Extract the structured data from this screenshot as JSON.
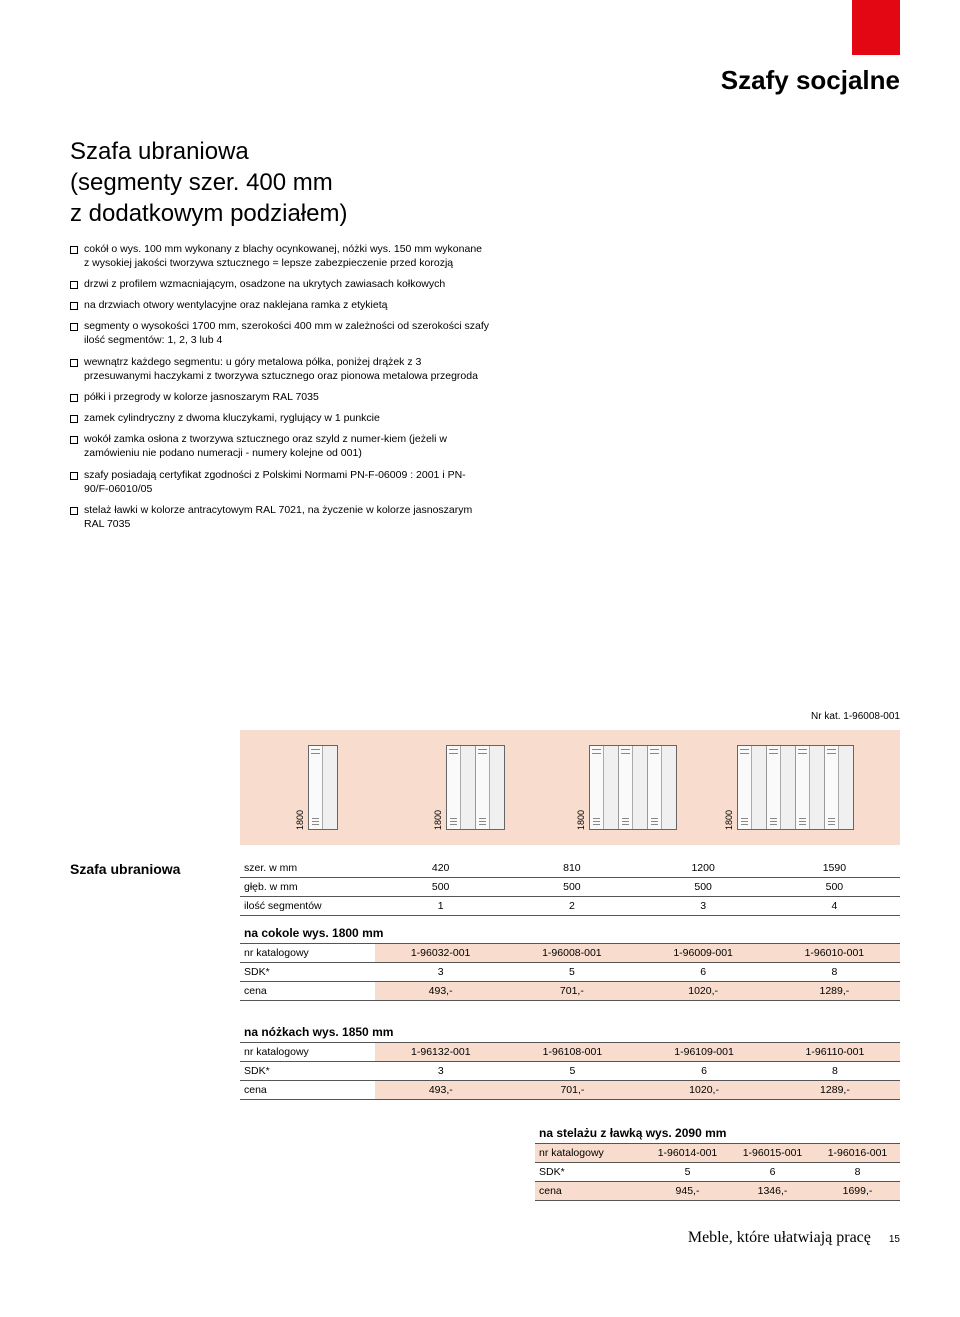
{
  "page_title": "Szafy socjalne",
  "product_title_l1": "Szafa ubraniowa",
  "product_title_l2": "(segmenty szer. 400 mm",
  "product_title_l3": "z dodatkowym podziałem)",
  "bullets": [
    "cokół o wys. 100 mm wykonany z blachy ocynkowanej, nóżki wys. 150 mm wykonane z wysokiej jakości tworzywa sztucznego = lepsze zabezpieczenie przed korozją",
    "drzwi z profilem wzmacniającym, osadzone na ukrytych zawiasach kołkowych",
    "na drzwiach otwory wentylacyjne oraz naklejana ramka z etykietą",
    "segmenty o wysokości 1700 mm, szerokości 400 mm w zależności od szerokości szafy ilość segmentów: 1, 2, 3 lub 4",
    "wewnątrz każdego segmentu: u góry metalowa półka, poniżej drążek z 3 przesuwanymi haczykami z tworzywa sztucznego oraz pionowa metalowa przegroda",
    "półki i przegrody w kolorze jasnoszarym RAL 7035",
    "zamek cylindryczny z dwoma kluczykami, ryglujący w 1 punkcie",
    "wokół zamka osłona z tworzywa sztucznego oraz szyld z numer-kiem (jeżeli w zamówieniu nie podano numeracji - numery kolejne od 001)",
    "szafy posiadają certyfikat zgodności z Polskimi Normami PN-F-06009 : 2001 i PN-90/F-06010/05",
    "stelaż ławki w kolorze antracytowym RAL 7021, na życzenie w kolorze jasnoszarym  RAL 7035"
  ],
  "nr_kat_label": "Nr kat. 1-96008-001",
  "height_label": "1800",
  "table_row_label": "Szafa ubraniowa",
  "rows_labels": {
    "szer": "szer. w mm",
    "gleb": "głęb. w mm",
    "ilosc": "ilość segmentów",
    "nr": "nr katalogowy",
    "sdk": "SDK*",
    "cena": "cena"
  },
  "section1": {
    "head": "na cokole wys. 1800 mm",
    "szer": [
      "420",
      "810",
      "1200",
      "1590"
    ],
    "gleb": [
      "500",
      "500",
      "500",
      "500"
    ],
    "ilosc": [
      "1",
      "2",
      "3",
      "4"
    ],
    "nr": [
      "1-96032-001",
      "1-96008-001",
      "1-96009-001",
      "1-96010-001"
    ],
    "sdk": [
      "3",
      "5",
      "6",
      "8"
    ],
    "cena": [
      "493,-",
      "701,-",
      "1020,-",
      "1289,-"
    ]
  },
  "section2": {
    "head": "na nóżkach wys. 1850 mm",
    "nr": [
      "1-96132-001",
      "1-96108-001",
      "1-96109-001",
      "1-96110-001"
    ],
    "sdk": [
      "3",
      "5",
      "6",
      "8"
    ],
    "cena": [
      "493,-",
      "701,-",
      "1020,-",
      "1289,-"
    ]
  },
  "section3": {
    "head": "na stelażu z ławką wys. 2090 mm",
    "nr": [
      "1-96014-001",
      "1-96015-001",
      "1-96016-001"
    ],
    "sdk": [
      "5",
      "6",
      "8"
    ],
    "cena": [
      "945,-",
      "1346,-",
      "1699,-"
    ]
  },
  "footer_tagline": "Meble, które ułatwiają pracę",
  "footer_page": "15",
  "colors": {
    "red": "#e30613",
    "peach": "#f8dccd"
  }
}
